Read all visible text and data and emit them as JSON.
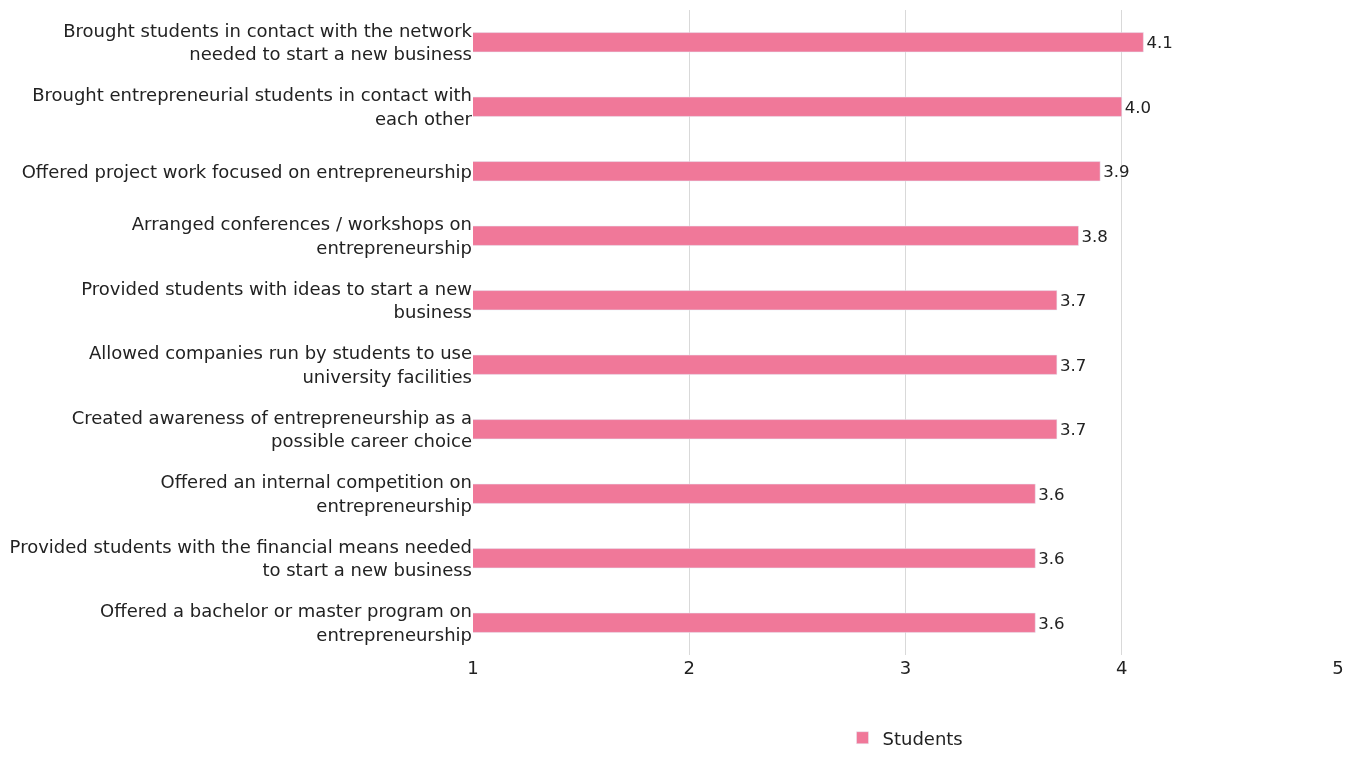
{
  "chart_data": {
    "type": "bar",
    "orientation": "horizontal",
    "categories": [
      "Brought students in contact with the network needed to start a new business",
      "Brought entrepreneurial students in contact with each other",
      "Offered project work focused on entrepreneurship",
      "Arranged conferences / workshops on entrepreneurship",
      "Provided students with ideas to start a new business",
      "Allowed companies run by students to use university facilities",
      "Created awareness of entrepreneurship as a possible career choice",
      "Offered an internal competition on entrepreneurship",
      "Provided students with the financial means needed to start a new business",
      "Offered a bachelor or master program on entrepreneurship"
    ],
    "series": [
      {
        "name": "Students",
        "color": "#f07899",
        "values": [
          4.1,
          4.0,
          3.9,
          3.8,
          3.7,
          3.7,
          3.7,
          3.6,
          3.6,
          3.6
        ],
        "value_labels": [
          "4.1",
          "4.0",
          "3.9",
          "3.8",
          "3.7",
          "3.7",
          "3.7",
          "3.6",
          "3.6",
          "3.6"
        ]
      }
    ],
    "xlim": [
      1,
      5
    ],
    "xticks": [
      1,
      2,
      3,
      4,
      5
    ],
    "grid": "x",
    "legend": "bottom"
  }
}
